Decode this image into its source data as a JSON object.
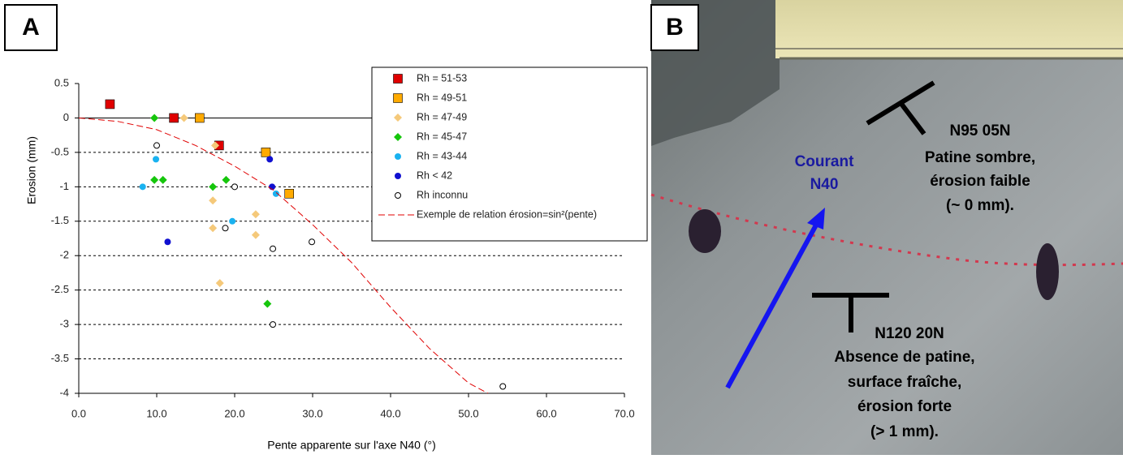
{
  "panels": [
    "A",
    "B"
  ],
  "chart_data": {
    "type": "scatter",
    "x_label": "Pente apparente sur l'axe N40 (°)",
    "y_label": "Erosion (mm)",
    "xlim": [
      0,
      70
    ],
    "ylim": [
      -4,
      0.5
    ],
    "xticks": [
      {
        "value": 0,
        "label": "0.0"
      },
      {
        "value": 10,
        "label": "10.0"
      },
      {
        "value": 20,
        "label": "20.0"
      },
      {
        "value": 30,
        "label": "30.0"
      },
      {
        "value": 40,
        "label": "40.0"
      },
      {
        "value": 50,
        "label": "50.0"
      },
      {
        "value": 60,
        "label": "60.0"
      },
      {
        "value": 70,
        "label": "70.0"
      }
    ],
    "yticks": [
      0.5,
      0,
      -0.5,
      -1,
      -1.5,
      -2,
      -2.5,
      -3,
      -3.5,
      -4
    ],
    "grid": true,
    "series": [
      {
        "name": "Rh = 51-53",
        "color": "#e00000",
        "marker": "square",
        "x": [
          4,
          12.2,
          18
        ],
        "values": [
          0.2,
          0,
          -0.4
        ]
      },
      {
        "name": "Rh = 49-51",
        "color": "#ffaa00",
        "marker": "square",
        "x": [
          15.5,
          24,
          27
        ],
        "values": [
          0,
          -0.5,
          -1.1
        ]
      },
      {
        "name": "Rh = 47-49",
        "color": "#f5c97a",
        "marker": "diamond",
        "x": [
          13.5,
          17.5,
          17.2,
          17.2,
          22.7,
          22.7,
          18.1
        ],
        "values": [
          0,
          -0.4,
          -1.2,
          -1.6,
          -1.4,
          -1.7,
          -2.4
        ]
      },
      {
        "name": "Rh = 45-47",
        "color": "#16c60c",
        "marker": "diamond",
        "x": [
          9.7,
          9.7,
          10.8,
          17.2,
          18.9,
          24.2
        ],
        "values": [
          0,
          -0.9,
          -0.9,
          -1,
          -0.9,
          -2.7
        ]
      },
      {
        "name": "Rh = 43-44",
        "color": "#1ab2f0",
        "marker": "circle",
        "x": [
          9.9,
          8.2,
          19.7,
          25.3
        ],
        "values": [
          -0.6,
          -1,
          -1.5,
          -1.1
        ]
      },
      {
        "name": "Rh < 42",
        "color": "#1010d0",
        "marker": "circle",
        "x": [
          24.5,
          24.8,
          11.4
        ],
        "values": [
          -0.6,
          -1,
          -1.8
        ]
      },
      {
        "name": "Rh inconnu",
        "color": "#000000",
        "marker": "open-circle",
        "x": [
          10,
          20,
          18.8,
          24.9,
          29.9,
          24.9,
          54.4
        ],
        "values": [
          -0.4,
          -1,
          -1.6,
          -1.9,
          -1.8,
          -3,
          -3.9
        ]
      },
      {
        "name": "Exemple de relation érosion=sin²(pente)",
        "color": "#e00000",
        "marker": "dashed-line",
        "x": [
          0,
          5,
          10,
          15,
          20,
          25,
          30,
          35,
          40,
          45,
          50,
          52.5
        ],
        "values": [
          0,
          -0.05,
          -0.17,
          -0.4,
          -0.7,
          -1.05,
          -1.55,
          -2.1,
          -2.75,
          -3.35,
          -3.85,
          -4
        ]
      }
    ]
  },
  "photo": {
    "annotations": [
      "Courant",
      "N40",
      "N95 05N",
      "Patine sombre,",
      "érosion faible",
      "(~ 0 mm).",
      "N120 20N",
      "Absence de patine,",
      "surface fraîche,",
      "érosion forte",
      "(> 1 mm)."
    ]
  }
}
